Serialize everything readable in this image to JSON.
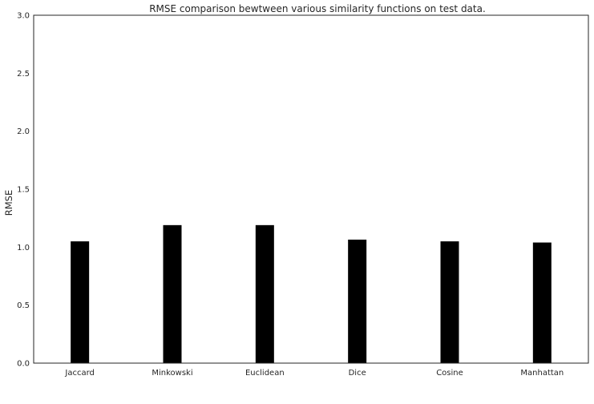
{
  "chart_data": {
    "type": "bar",
    "title": "RMSE comparison bewtween various similarity functions on test data.",
    "xlabel": "",
    "ylabel": "RMSE",
    "categories": [
      "Jaccard",
      "Minkowski",
      "Euclidean",
      "Dice",
      "Cosine",
      "Manhattan"
    ],
    "values": [
      1.05,
      1.19,
      1.19,
      1.065,
      1.05,
      1.04
    ],
    "ylim": [
      0,
      3.0
    ],
    "yticks": [
      "0.0",
      "0.5",
      "1.0",
      "1.5",
      "2.0",
      "2.5",
      "3.0"
    ],
    "ytick_values": [
      0,
      0.5,
      1.0,
      1.5,
      2.0,
      2.5,
      3.0
    ],
    "grid": false,
    "bar_color": "#000000",
    "legend": "none"
  }
}
